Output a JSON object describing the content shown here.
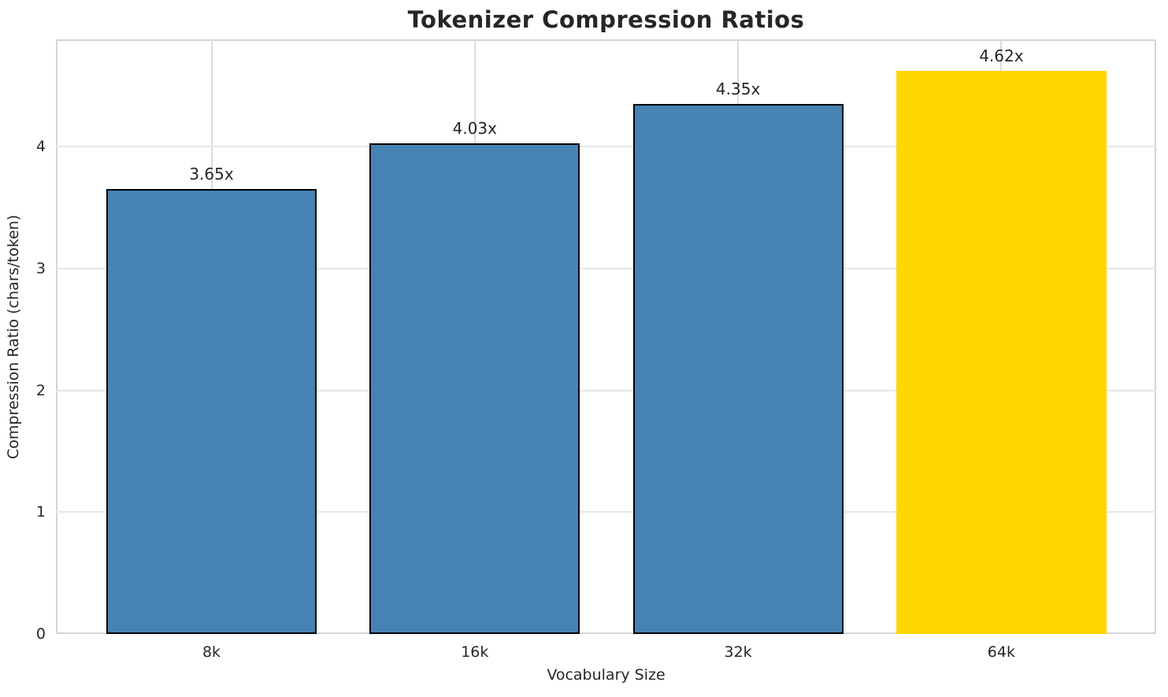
{
  "title": "Tokenizer Compression Ratios",
  "chart_data": {
    "type": "bar",
    "title": "Tokenizer Compression Ratios",
    "xlabel": "Vocabulary Size",
    "ylabel": "Compression Ratio (chars/token)",
    "categories": [
      "8k",
      "16k",
      "32k",
      "64k"
    ],
    "values": [
      3.65,
      4.03,
      4.35,
      4.62
    ],
    "bar_labels": [
      "3.65x",
      "4.03x",
      "4.35x",
      "4.62x"
    ],
    "bar_colors": [
      "#4682b4",
      "#4682b4",
      "#4682b4",
      "#ffd700"
    ],
    "bar_edge_colors": [
      "#000000",
      "#000000",
      "#000000",
      "none"
    ],
    "bar_edge_width": 2,
    "yticks": [
      0,
      1,
      2,
      3,
      4
    ],
    "ylim": [
      0,
      4.88
    ],
    "grid": true,
    "legend": "none",
    "colors": {
      "default_bar": "#4682b4",
      "highlight_bar": "#ffd700",
      "grid_horizontal": "#e7e7e7",
      "grid_vertical": "#dcdcdc",
      "spine": "#d4d4d4",
      "text": "#262626",
      "background": "#ffffff"
    }
  }
}
